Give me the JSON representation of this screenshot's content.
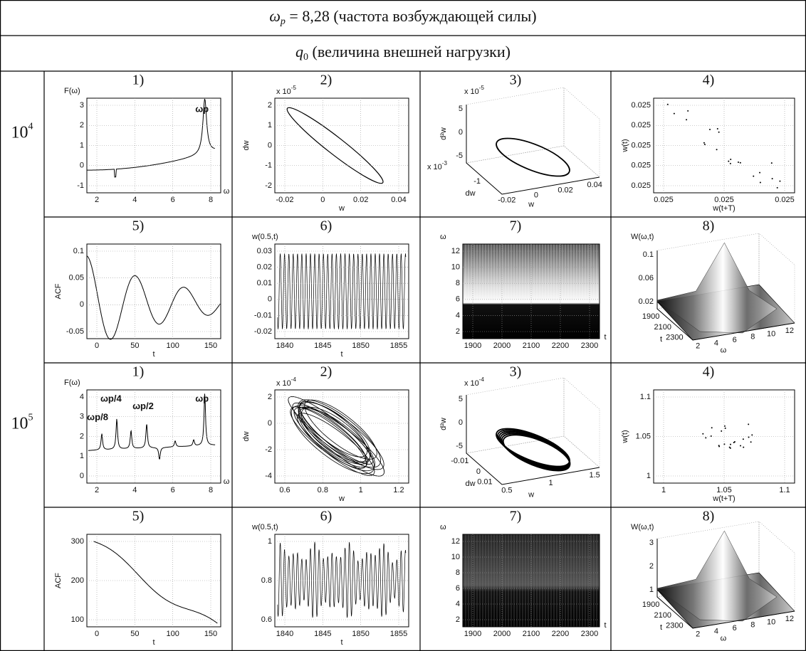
{
  "header": {
    "omega": "ω",
    "omega_sub": "p",
    "omega_text": " = 8,28 (частота возбуждающей силы)",
    "q": "q",
    "q_sub": "0",
    "q_text": " (величина внешней нагрузки)"
  },
  "rows": [
    {
      "q0": {
        "base": "10",
        "exp": "4"
      },
      "plots": [
        {
          "label": "1)",
          "corner": "F(ω)",
          "yticks": [
            "-1",
            "0",
            "1",
            "2",
            "3"
          ],
          "xticks": [
            "2",
            "4",
            "6",
            "8"
          ],
          "xlabel": "ω",
          "notes": [
            "ωp"
          ]
        },
        {
          "label": "2)",
          "scale": "x 10",
          "scale_exp": "-5",
          "ylabel": "dw",
          "yticks": [
            "-2",
            "-1",
            "0",
            "1",
            "2"
          ],
          "xticks": [
            "-0.02",
            "0",
            "0.02",
            "0.04"
          ],
          "xlabel": "w"
        },
        {
          "label": "3)",
          "scale": "x 10",
          "scale_exp": "-5",
          "ylabel": "d²w",
          "yticks": [
            "-5",
            "0",
            "5"
          ],
          "scale2": "x 10",
          "scale2_exp": "-3",
          "side_label": "dw",
          "side_ticks": [
            "-1"
          ],
          "xticks": [
            "-0.02",
            "0",
            "0.02",
            "0.04"
          ],
          "xlabel": "w"
        },
        {
          "label": "4)",
          "ylabel": "w(t)",
          "yticks": [
            "0.025",
            "0.025",
            "0.025",
            "0.025",
            "0.025"
          ],
          "xticks": [
            "0.025",
            "0.025",
            "0.025"
          ],
          "xlabel": "w(t+T)"
        }
      ]
    },
    {
      "plots": [
        {
          "label": "5)",
          "ylabel": "ACF",
          "yticks": [
            "-0.05",
            "0",
            "0.05",
            "0.1"
          ],
          "xticks": [
            "0",
            "50",
            "100",
            "150"
          ],
          "xlabel": "t"
        },
        {
          "label": "6)",
          "corner": "w(0.5,t)",
          "yticks": [
            "-0.02",
            "-0.01",
            "0",
            "0.01",
            "0.02",
            "0.03"
          ],
          "xticks": [
            "1840",
            "1845",
            "1850",
            "1855"
          ],
          "xlabel": "t"
        },
        {
          "label": "7)",
          "corner": "ω",
          "yticks": [
            "2",
            "4",
            "6",
            "8",
            "10",
            "12"
          ],
          "xticks": [
            "1900",
            "2000",
            "2100",
            "2200",
            "2300"
          ],
          "xlabel": "t"
        },
        {
          "label": "8)",
          "corner": "W(ω,t)",
          "yticks": [
            "0.02",
            "0.06",
            "0.1"
          ],
          "side_label": "t",
          "side_ticks": [
            "1900",
            "2100",
            "2300"
          ],
          "xticks": [
            "2",
            "4",
            "6",
            "8",
            "10",
            "12"
          ],
          "xlabel": "ω"
        }
      ]
    },
    {
      "q0": {
        "base": "10",
        "exp": "5"
      },
      "plots": [
        {
          "label": "1)",
          "corner": "F(ω)",
          "yticks": [
            "0",
            "1",
            "2",
            "3",
            "4"
          ],
          "xticks": [
            "2",
            "4",
            "6",
            "8"
          ],
          "xlabel": "ω",
          "notes": [
            "ωp/8",
            "ωp/4",
            "ωp/2",
            "ωp"
          ]
        },
        {
          "label": "2)",
          "scale": "x 10",
          "scale_exp": "-4",
          "ylabel": "dw",
          "yticks": [
            "-4",
            "-2",
            "0",
            "2"
          ],
          "xticks": [
            "0.6",
            "0.8",
            "1",
            "1.2"
          ],
          "xlabel": "w"
        },
        {
          "label": "3)",
          "scale": "x 10",
          "scale_exp": "-4",
          "ylabel": "d²w",
          "yticks": [
            "-5",
            "0",
            "5"
          ],
          "side_label": "dw",
          "side_ticks": [
            "-0.01",
            "0",
            "0.01"
          ],
          "xticks": [
            "0.5",
            "1",
            "1.5"
          ],
          "xlabel": "w"
        },
        {
          "label": "4)",
          "ylabel": "w(t)",
          "yticks": [
            "1",
            "1.05",
            "1.1"
          ],
          "xticks": [
            "1",
            "1.05",
            "1.1"
          ],
          "xlabel": "w(t+T)"
        }
      ]
    },
    {
      "plots": [
        {
          "label": "5)",
          "ylabel": "ACF",
          "yticks": [
            "100",
            "200",
            "300"
          ],
          "xticks": [
            "0",
            "50",
            "100",
            "150"
          ],
          "xlabel": "t"
        },
        {
          "label": "6)",
          "corner": "w(0.5,t)",
          "yticks": [
            "0.6",
            "0.8",
            "1"
          ],
          "xticks": [
            "1840",
            "1845",
            "1850",
            "1855"
          ],
          "xlabel": "t"
        },
        {
          "label": "7)",
          "corner": "ω",
          "yticks": [
            "2",
            "4",
            "6",
            "8",
            "10",
            "12"
          ],
          "xticks": [
            "1900",
            "2000",
            "2100",
            "2200",
            "2300"
          ],
          "xlabel": "t"
        },
        {
          "label": "8)",
          "corner": "W(ω,t)",
          "yticks": [
            "1",
            "2",
            "3"
          ],
          "side_label": "t",
          "side_ticks": [
            "1900",
            "2100",
            "2300"
          ],
          "xticks": [
            "2",
            "4",
            "6",
            "8",
            "10",
            "12"
          ],
          "xlabel": "ω"
        }
      ]
    }
  ]
}
